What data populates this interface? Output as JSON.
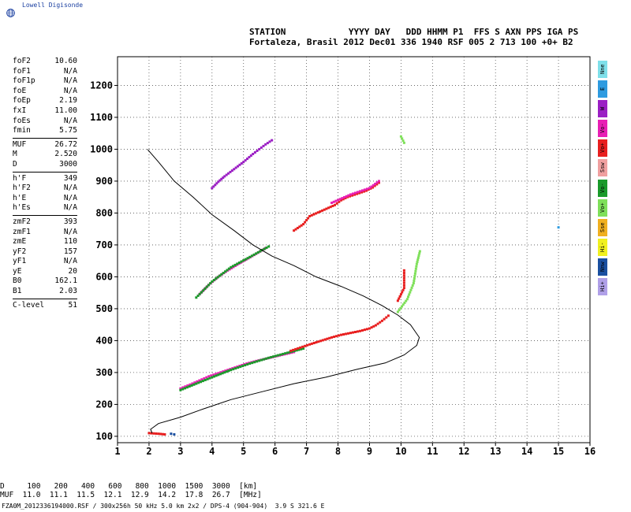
{
  "brand": {
    "name": "Lowell Digisonde",
    "logo_icon": "globe-icon"
  },
  "header": {
    "line1": "STATION            YYYY DAY   DDD HHMM P1  FFS S AXN PPS IGA PS",
    "line2": "Fortaleza, Brasil 2012 Dec01 336 1940 RSF 005 2 713 100 +0+ B2"
  },
  "params": {
    "group1": [
      {
        "label": "foF2",
        "value": "10.60"
      },
      {
        "label": "foF1",
        "value": "N/A"
      },
      {
        "label": "foF1p",
        "value": "N/A"
      },
      {
        "label": "foE",
        "value": "N/A"
      },
      {
        "label": "foEp",
        "value": "2.19"
      },
      {
        "label": "fxI",
        "value": "11.00"
      },
      {
        "label": "foEs",
        "value": "N/A"
      },
      {
        "label": "fmin",
        "value": "5.75"
      }
    ],
    "group2": [
      {
        "label": "MUF",
        "value": "26.72"
      },
      {
        "label": "M",
        "value": "2.520"
      },
      {
        "label": "D",
        "value": "3000"
      }
    ],
    "group3": [
      {
        "label": "h'F",
        "value": "349"
      },
      {
        "label": "h'F2",
        "value": "N/A"
      },
      {
        "label": "h'E",
        "value": "N/A"
      },
      {
        "label": "h'Es",
        "value": "N/A"
      }
    ],
    "group4": [
      {
        "label": "zmF2",
        "value": "393"
      },
      {
        "label": "zmF1",
        "value": "N/A"
      },
      {
        "label": "zmE",
        "value": "110"
      },
      {
        "label": "yF2",
        "value": "157"
      },
      {
        "label": "yF1",
        "value": "N/A"
      },
      {
        "label": "yE",
        "value": "20"
      },
      {
        "label": "B0",
        "value": "162.1"
      },
      {
        "label": "B1",
        "value": "2.03"
      }
    ],
    "group5": [
      {
        "label": "C-level",
        "value": "51"
      }
    ]
  },
  "legend": [
    {
      "label": "Nne",
      "color": "#7fe0ea"
    },
    {
      "label": "E",
      "color": "#2e9be0"
    },
    {
      "label": "W",
      "color": "#9b1fc4"
    },
    {
      "label": "Vo-",
      "color": "#e81fb4"
    },
    {
      "label": "Vo+",
      "color": "#e81f1f"
    },
    {
      "label": "Ssw",
      "color": "#f0a0a0"
    },
    {
      "label": "Vo-",
      "color": "#1a9a2a"
    },
    {
      "label": "Vo+",
      "color": "#7fe05a"
    },
    {
      "label": "Sse",
      "color": "#f0b020"
    },
    {
      "label": "Hi-",
      "color": "#f0f020"
    },
    {
      "label": "Nnw",
      "color": "#1a4fa0"
    },
    {
      "label": "Hi+",
      "color": "#b0a0e8"
    }
  ],
  "muf_table": {
    "line1": "D     100   200   400   600   800  1000  1500  3000  [km]",
    "line2": "MUF  11.0  11.1  11.5  12.1  12.9  14.2  17.8  26.7  [MHz]"
  },
  "footer": "FZA0M_2012336194000.RSF / 300x256h 50 kHz 5.0 km 2x2 / DPS-4 (904-904)  3.9 S 321.6 E",
  "chart_data": {
    "type": "scatter",
    "xlim": [
      1,
      16
    ],
    "ylim": [
      80,
      1290
    ],
    "xticks": [
      1,
      2,
      3,
      4,
      5,
      6,
      7,
      8,
      9,
      10,
      11,
      12,
      13,
      14,
      15,
      16
    ],
    "yticks": [
      100,
      200,
      300,
      400,
      500,
      600,
      700,
      800,
      900,
      1000,
      1100,
      1200
    ],
    "grid": true,
    "profile": [
      [
        1.95,
        1000
      ],
      [
        2.3,
        960
      ],
      [
        2.8,
        900
      ],
      [
        3.4,
        850
      ],
      [
        4.0,
        795
      ],
      [
        4.7,
        745
      ],
      [
        5.3,
        700
      ],
      [
        5.9,
        665
      ],
      [
        6.6,
        635
      ],
      [
        7.3,
        600
      ],
      [
        8.1,
        570
      ],
      [
        8.8,
        540
      ],
      [
        9.4,
        510
      ],
      [
        9.9,
        480
      ],
      [
        10.3,
        450
      ],
      [
        10.58,
        410
      ],
      [
        10.5,
        385
      ],
      [
        10.1,
        355
      ],
      [
        9.5,
        330
      ],
      [
        8.6,
        310
      ],
      [
        7.6,
        285
      ],
      [
        6.6,
        265
      ],
      [
        5.6,
        240
      ],
      [
        4.6,
        215
      ],
      [
        3.7,
        185
      ],
      [
        3.0,
        160
      ],
      [
        2.3,
        140
      ],
      [
        2.05,
        122
      ],
      [
        2.1,
        110
      ]
    ],
    "trace_series": [
      {
        "color": "#e81fb4",
        "points": [
          [
            3.0,
            250
          ],
          [
            3.3,
            262
          ],
          [
            3.6,
            275
          ],
          [
            3.9,
            288
          ],
          [
            4.2,
            298
          ],
          [
            4.5,
            308
          ],
          [
            4.8,
            318
          ],
          [
            5.1,
            328
          ],
          [
            5.4,
            336
          ],
          [
            5.7,
            343
          ],
          [
            6.0,
            350
          ],
          [
            6.3,
            357
          ],
          [
            6.6,
            364
          ]
        ]
      },
      {
        "color": "#1a9a2a",
        "points": [
          [
            3.0,
            245
          ],
          [
            3.5,
            265
          ],
          [
            4.0,
            285
          ],
          [
            4.6,
            308
          ],
          [
            5.2,
            328
          ],
          [
            5.8,
            346
          ],
          [
            6.4,
            362
          ],
          [
            6.9,
            375
          ]
        ]
      },
      {
        "color": "#e81f1f",
        "points": [
          [
            6.5,
            368
          ],
          [
            6.8,
            378
          ],
          [
            7.1,
            388
          ],
          [
            7.8,
            410
          ],
          [
            8.1,
            418
          ],
          [
            8.4,
            424
          ],
          [
            8.7,
            430
          ],
          [
            9.0,
            438
          ],
          [
            9.2,
            448
          ],
          [
            9.4,
            462
          ],
          [
            9.6,
            478
          ]
        ]
      },
      {
        "color": "#e81fb4",
        "points": [
          [
            3.6,
            545
          ],
          [
            3.9,
            575
          ],
          [
            4.2,
            600
          ],
          [
            4.5,
            620
          ],
          [
            4.8,
            638
          ],
          [
            5.1,
            655
          ],
          [
            5.4,
            672
          ],
          [
            5.7,
            690
          ]
        ]
      },
      {
        "color": "#1a9a2a",
        "points": [
          [
            3.5,
            535
          ],
          [
            4.0,
            585
          ],
          [
            4.6,
            630
          ],
          [
            5.2,
            662
          ],
          [
            5.8,
            695
          ]
        ]
      },
      {
        "color": "#9b1fc4",
        "points": [
          [
            4.0,
            878
          ],
          [
            4.2,
            898
          ],
          [
            4.4,
            915
          ],
          [
            5.0,
            960
          ],
          [
            5.3,
            985
          ],
          [
            5.5,
            1000
          ],
          [
            5.7,
            1015
          ],
          [
            5.9,
            1028
          ]
        ]
      },
      {
        "color": "#e81f1f",
        "points": [
          [
            6.6,
            745
          ],
          [
            6.9,
            765
          ],
          [
            7.1,
            790
          ],
          [
            7.9,
            825
          ],
          [
            8.1,
            840
          ],
          [
            8.3,
            850
          ],
          [
            8.6,
            860
          ],
          [
            8.9,
            870
          ],
          [
            9.1,
            880
          ],
          [
            9.3,
            895
          ]
        ]
      },
      {
        "color": "#e81fb4",
        "points": [
          [
            7.8,
            832
          ],
          [
            8.4,
            858
          ],
          [
            9.0,
            878
          ],
          [
            9.3,
            900
          ]
        ]
      },
      {
        "color": "#e81f1f",
        "points": [
          [
            9.9,
            525
          ],
          [
            10.1,
            565
          ],
          [
            10.1,
            620
          ]
        ]
      },
      {
        "color": "#7fe05a",
        "points": [
          [
            9.9,
            490
          ],
          [
            10.2,
            530
          ],
          [
            10.4,
            580
          ],
          [
            10.5,
            640
          ],
          [
            10.6,
            680
          ]
        ]
      },
      {
        "color": "#e81f1f",
        "points": [
          [
            2.0,
            110
          ],
          [
            2.3,
            108
          ],
          [
            2.5,
            106
          ]
        ]
      },
      {
        "color": "#1a4fa0",
        "points": [
          [
            2.7,
            108
          ],
          [
            2.8,
            106
          ]
        ]
      },
      {
        "color": "#2e9be0",
        "points": [
          [
            15.0,
            755
          ]
        ]
      },
      {
        "color": "#7fe05a",
        "points": [
          [
            10.1,
            1020
          ],
          [
            10.0,
            1040
          ]
        ]
      }
    ]
  }
}
